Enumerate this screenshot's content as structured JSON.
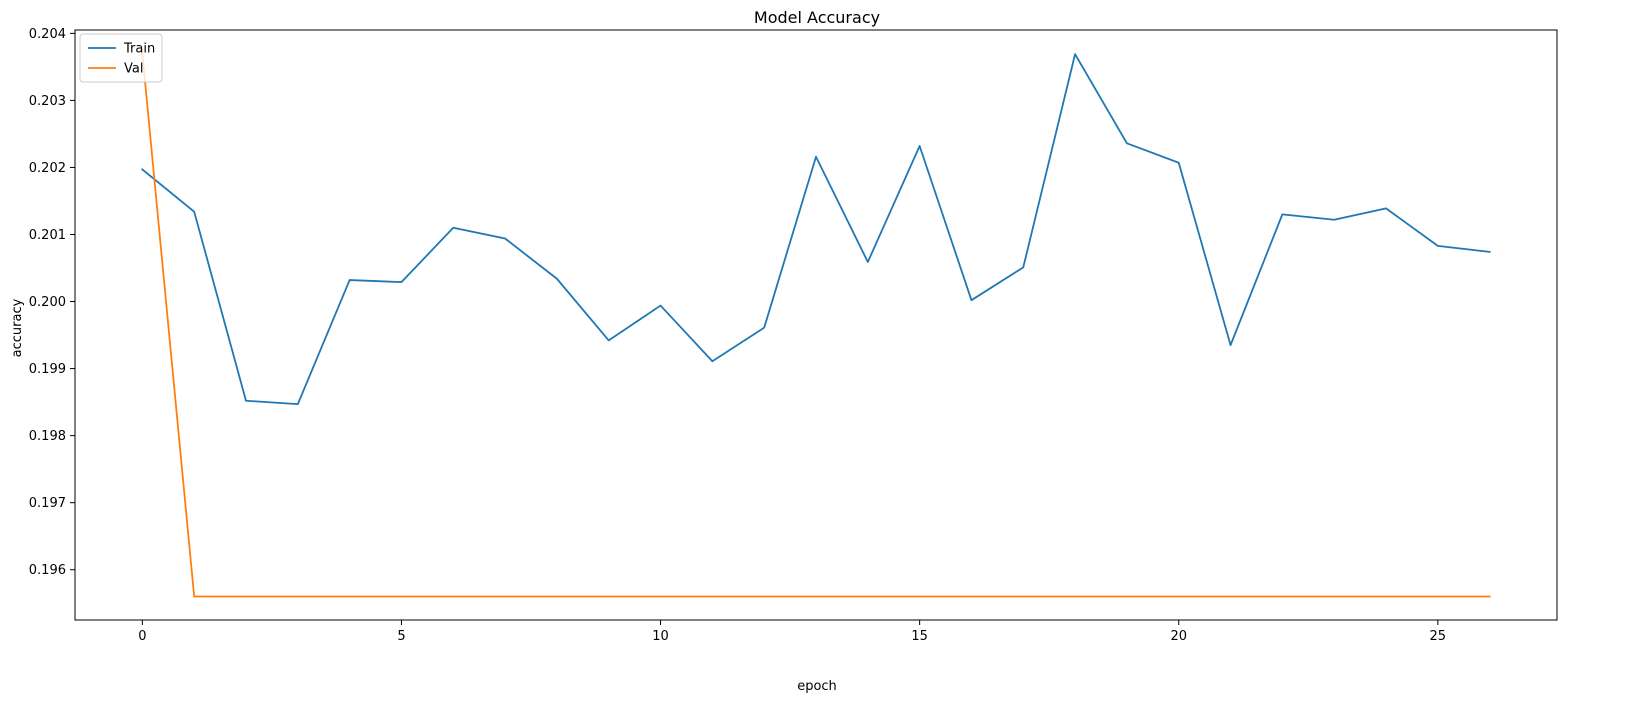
{
  "chart_data": {
    "type": "line",
    "title": "Model Accuracy",
    "xlabel": "epoch",
    "ylabel": "accuracy",
    "xlim": [
      -1.3,
      27.3
    ],
    "ylim": [
      0.19525,
      0.20405
    ],
    "xticks": [
      0,
      5,
      10,
      15,
      20,
      25
    ],
    "yticks": [
      0.196,
      0.197,
      0.198,
      0.199,
      0.2,
      0.201,
      0.202,
      0.203,
      0.204
    ],
    "ytick_labels": [
      "0.196",
      "0.197",
      "0.198",
      "0.199",
      "0.200",
      "0.201",
      "0.202",
      "0.203",
      "0.204"
    ],
    "grid": false,
    "legend_position": "top-left",
    "x": [
      0,
      1,
      2,
      3,
      4,
      5,
      6,
      7,
      8,
      9,
      10,
      11,
      12,
      13,
      14,
      15,
      16,
      17,
      18,
      19,
      20,
      21,
      22,
      23,
      24,
      25,
      26
    ],
    "series": [
      {
        "name": "Train",
        "color": "#1f77b4",
        "values": [
          0.20197,
          0.20134,
          0.19852,
          0.19847,
          0.20032,
          0.20029,
          0.2011,
          0.20094,
          0.20034,
          0.19942,
          0.19994,
          0.19911,
          0.19961,
          0.20216,
          0.20059,
          0.20232,
          0.20002,
          0.20051,
          0.20369,
          0.20236,
          0.20207,
          0.19935,
          0.2013,
          0.20122,
          0.20139,
          0.20083,
          0.20074
        ]
      },
      {
        "name": "Val",
        "color": "#ff7f0e",
        "values": [
          0.2037,
          0.1956,
          0.1956,
          0.1956,
          0.1956,
          0.1956,
          0.1956,
          0.1956,
          0.1956,
          0.1956,
          0.1956,
          0.1956,
          0.1956,
          0.1956,
          0.1956,
          0.1956,
          0.1956,
          0.1956,
          0.1956,
          0.1956,
          0.1956,
          0.1956,
          0.1956,
          0.1956,
          0.1956,
          0.1956,
          0.1956
        ]
      }
    ]
  }
}
